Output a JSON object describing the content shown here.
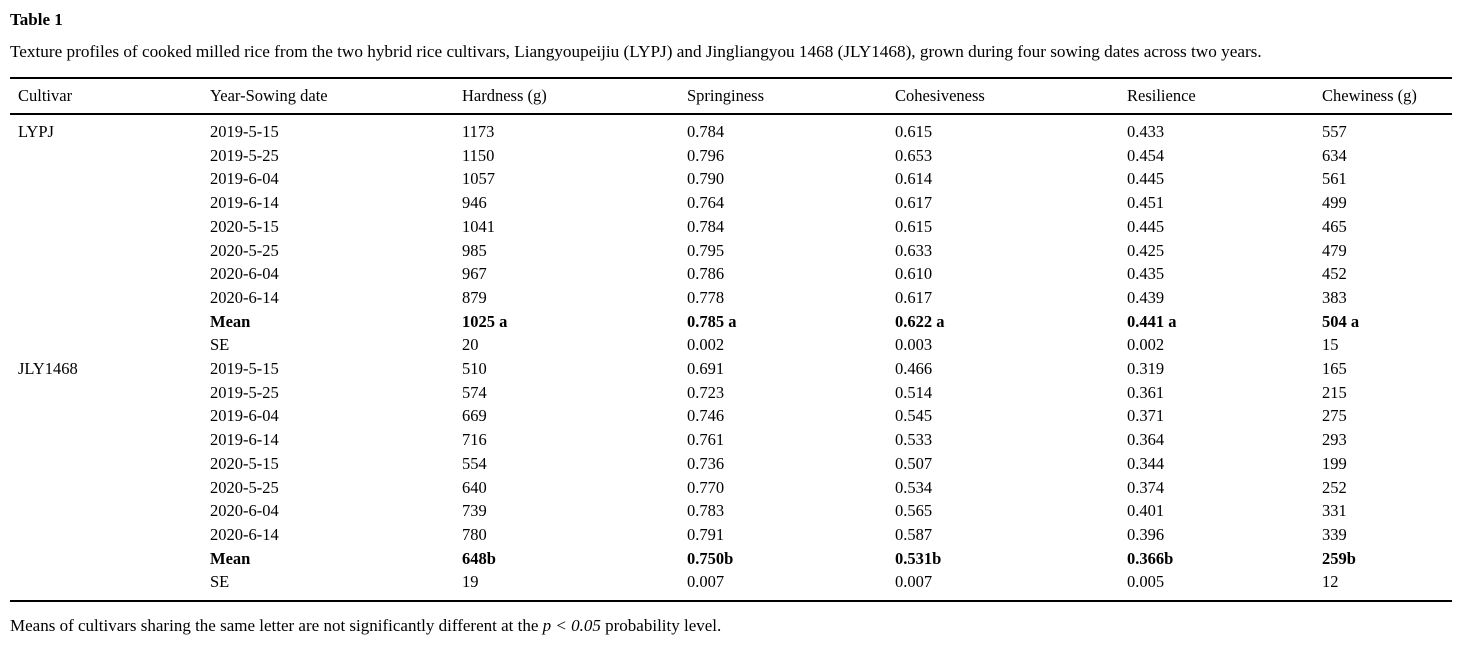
{
  "page": {
    "title": "Table 1",
    "caption": "Texture profiles of cooked milled rice from the two hybrid rice cultivars, Liangyoupeijiu (LYPJ) and Jingliangyou 1468 (JLY1468), grown during four sowing dates across two years.",
    "footnote": {
      "prefix": "Means of cultivars sharing the same letter are not significantly different at the ",
      "italic": "p < 0.05",
      "suffix": " probability level."
    }
  },
  "table": {
    "columns": [
      "Cultivar",
      "Year-Sowing date",
      "Hardness (g)",
      "Springiness",
      "Cohesiveness",
      "Resilience",
      "Chewiness (g)"
    ],
    "rows": [
      {
        "cells": [
          "LYPJ",
          "2019-5-15",
          "1173",
          "0.784",
          "0.615",
          "0.433",
          "557"
        ],
        "bold": false
      },
      {
        "cells": [
          "",
          "2019-5-25",
          "1150",
          "0.796",
          "0.653",
          "0.454",
          "634"
        ],
        "bold": false
      },
      {
        "cells": [
          "",
          "2019-6-04",
          "1057",
          "0.790",
          "0.614",
          "0.445",
          "561"
        ],
        "bold": false
      },
      {
        "cells": [
          "",
          "2019-6-14",
          "946",
          "0.764",
          "0.617",
          "0.451",
          "499"
        ],
        "bold": false
      },
      {
        "cells": [
          "",
          "2020-5-15",
          "1041",
          "0.784",
          "0.615",
          "0.445",
          "465"
        ],
        "bold": false
      },
      {
        "cells": [
          "",
          "2020-5-25",
          "985",
          "0.795",
          "0.633",
          "0.425",
          "479"
        ],
        "bold": false
      },
      {
        "cells": [
          "",
          "2020-6-04",
          "967",
          "0.786",
          "0.610",
          "0.435",
          "452"
        ],
        "bold": false
      },
      {
        "cells": [
          "",
          "2020-6-14",
          "879",
          "0.778",
          "0.617",
          "0.439",
          "383"
        ],
        "bold": false
      },
      {
        "cells": [
          "",
          "Mean",
          "1025 a",
          "0.785 a",
          "0.622 a",
          "0.441 a",
          "504 a"
        ],
        "bold": true
      },
      {
        "cells": [
          "",
          "SE",
          "20",
          "0.002",
          "0.003",
          "0.002",
          "15"
        ],
        "bold": false
      },
      {
        "cells": [
          "JLY1468",
          "2019-5-15",
          "510",
          "0.691",
          "0.466",
          "0.319",
          "165"
        ],
        "bold": false
      },
      {
        "cells": [
          "",
          "2019-5-25",
          "574",
          "0.723",
          "0.514",
          "0.361",
          "215"
        ],
        "bold": false
      },
      {
        "cells": [
          "",
          "2019-6-04",
          "669",
          "0.746",
          "0.545",
          "0.371",
          "275"
        ],
        "bold": false
      },
      {
        "cells": [
          "",
          "2019-6-14",
          "716",
          "0.761",
          "0.533",
          "0.364",
          "293"
        ],
        "bold": false
      },
      {
        "cells": [
          "",
          "2020-5-15",
          "554",
          "0.736",
          "0.507",
          "0.344",
          "199"
        ],
        "bold": false
      },
      {
        "cells": [
          "",
          "2020-5-25",
          "640",
          "0.770",
          "0.534",
          "0.374",
          "252"
        ],
        "bold": false
      },
      {
        "cells": [
          "",
          "2020-6-04",
          "739",
          "0.783",
          "0.565",
          "0.401",
          "331"
        ],
        "bold": false
      },
      {
        "cells": [
          "",
          "2020-6-14",
          "780",
          "0.791",
          "0.587",
          "0.396",
          "339"
        ],
        "bold": false
      },
      {
        "cells": [
          "",
          "Mean",
          "648b",
          "0.750b",
          "0.531b",
          "0.366b",
          "259b"
        ],
        "bold": true
      },
      {
        "cells": [
          "",
          "SE",
          "19",
          "0.007",
          "0.007",
          "0.005",
          "12"
        ],
        "bold": false
      }
    ]
  }
}
